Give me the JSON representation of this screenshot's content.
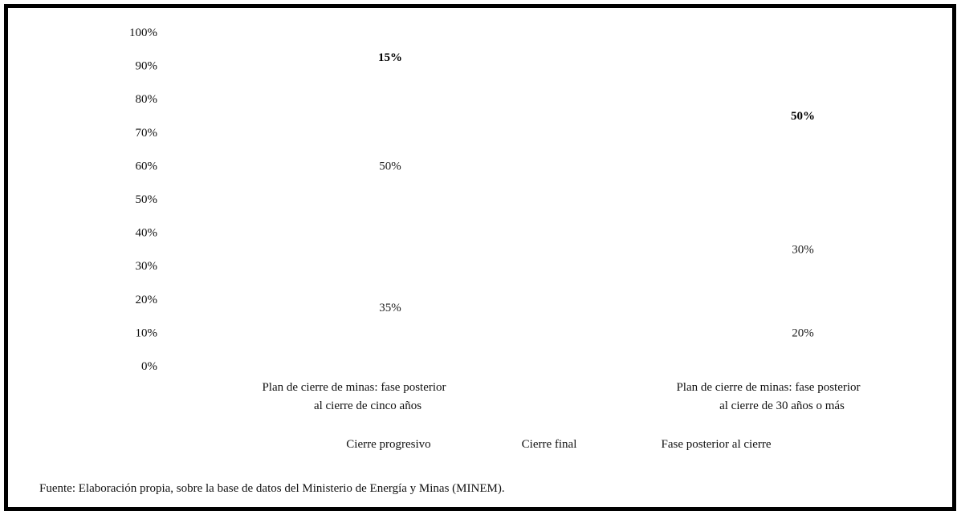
{
  "chart_data": {
    "type": "bar",
    "stacked": true,
    "categories": [
      [
        "Plan de cierre de minas: fase posterior",
        "al cierre de cinco años"
      ],
      [
        "Plan de cierre de minas: fase posterior",
        "al cierre de 30 años o más"
      ]
    ],
    "series": [
      {
        "name": "Cierre progresivo",
        "values": [
          35,
          20
        ],
        "color": "#ffffff"
      },
      {
        "name": "Cierre final",
        "values": [
          50,
          30
        ],
        "color": "#ffffff"
      },
      {
        "name": "Fase posterior al cierre",
        "values": [
          15,
          50
        ],
        "color": "#ffffff",
        "bold_labels": true
      }
    ],
    "data_labels": [
      [
        "35%",
        "50%",
        "15%"
      ],
      [
        "20%",
        "30%",
        "50%"
      ]
    ],
    "y_ticks": [
      "0%",
      "10%",
      "20%",
      "30%",
      "40%",
      "50%",
      "60%",
      "70%",
      "80%",
      "90%",
      "100%"
    ],
    "ylim": [
      0,
      100
    ],
    "grid": false,
    "legend_position": "bottom"
  },
  "source": "Fuente: Elaboración propia, sobre la base de datos del Ministerio de Energía y Minas (MINEM)."
}
